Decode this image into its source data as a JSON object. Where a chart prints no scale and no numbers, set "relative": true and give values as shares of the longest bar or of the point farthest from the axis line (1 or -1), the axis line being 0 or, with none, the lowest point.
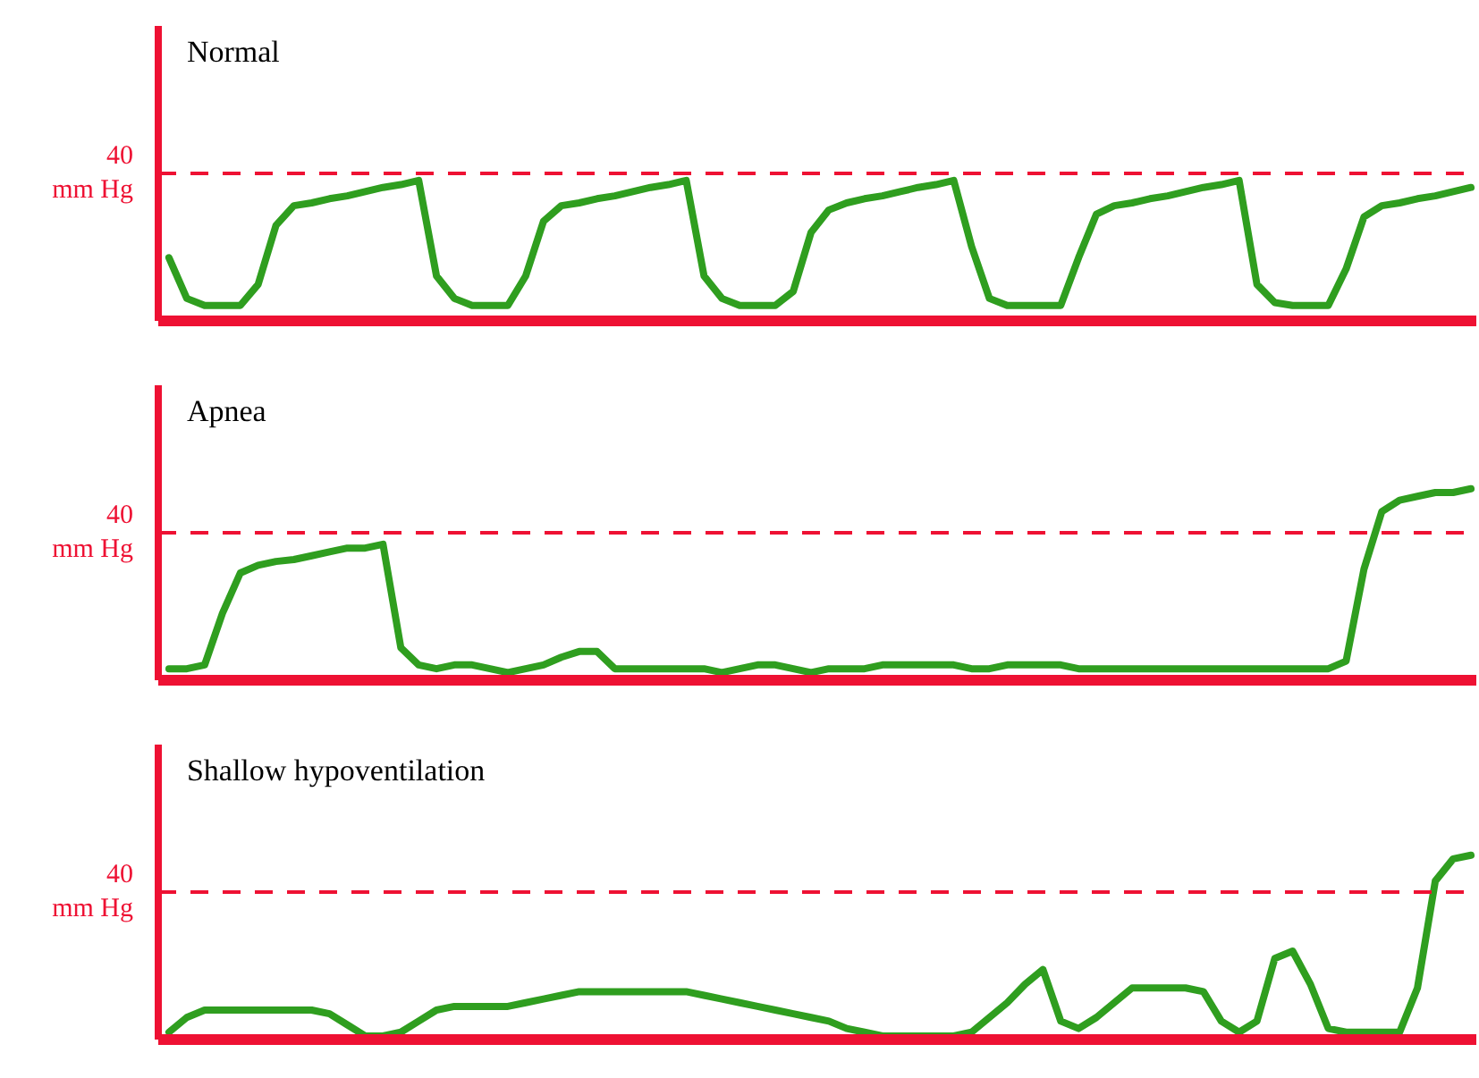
{
  "chart_data": [
    {
      "type": "line",
      "title": "Normal",
      "relative": true,
      "categories": [
        null,
        null,
        null,
        null,
        null,
        null,
        null,
        null,
        null,
        null,
        null,
        null,
        null,
        null,
        null,
        null,
        null,
        null,
        null,
        null,
        null,
        null,
        null,
        null,
        null,
        null,
        null,
        null,
        null,
        null,
        null,
        null,
        null,
        null,
        null,
        null,
        null,
        null,
        null,
        null,
        null,
        null,
        null,
        null,
        null,
        null,
        null,
        null,
        null,
        null,
        null,
        null,
        null,
        null,
        null,
        null,
        null,
        null,
        null,
        null,
        null,
        null,
        null,
        null,
        null,
        null,
        null,
        null,
        null,
        null,
        null,
        null,
        null,
        null
      ],
      "series": [
        {
          "color": "#2f9e1f",
          "values": [
            0.45,
            0.16,
            0.11,
            0.11,
            0.11,
            0.26,
            0.68,
            0.82,
            0.84,
            0.87,
            0.89,
            0.92,
            0.95,
            0.97,
            1,
            0.32,
            0.16,
            0.11,
            0.11,
            0.11,
            0.32,
            0.71,
            0.82,
            0.84,
            0.87,
            0.89,
            0.92,
            0.95,
            0.97,
            1,
            0.32,
            0.16,
            0.11,
            0.11,
            0.11,
            0.21,
            0.63,
            0.79,
            0.84,
            0.87,
            0.89,
            0.92,
            0.95,
            0.97,
            1,
            0.53,
            0.16,
            0.11,
            0.11,
            0.11,
            0.11,
            0.45,
            0.76,
            0.82,
            0.84,
            0.87,
            0.89,
            0.92,
            0.95,
            0.97,
            1,
            0.26,
            0.13,
            0.11,
            0.11,
            0.11,
            0.37,
            0.74,
            0.82,
            0.84,
            0.87,
            0.89,
            0.92,
            0.95
          ]
        }
      ],
      "ref_lines": [
        {
          "axis": "y",
          "value": 1.05,
          "label": "40\nmm Hg",
          "color": "#ee1133",
          "line_style": "dashed"
        }
      ]
    },
    {
      "type": "line",
      "title": "Apnea",
      "relative": true,
      "categories": [
        null,
        null,
        null,
        null,
        null,
        null,
        null,
        null,
        null,
        null,
        null,
        null,
        null,
        null,
        null,
        null,
        null,
        null,
        null,
        null,
        null,
        null,
        null,
        null,
        null,
        null,
        null,
        null,
        null,
        null,
        null,
        null,
        null,
        null,
        null,
        null,
        null,
        null,
        null,
        null,
        null,
        null,
        null,
        null,
        null,
        null,
        null,
        null,
        null,
        null,
        null,
        null,
        null,
        null,
        null,
        null,
        null,
        null,
        null,
        null,
        null,
        null,
        null,
        null,
        null,
        null,
        null,
        null,
        null,
        null,
        null,
        null,
        null,
        null
      ],
      "series": [
        {
          "color": "#2f9e1f",
          "values": [
            0.06,
            0.06,
            0.08,
            0.35,
            0.56,
            0.6,
            0.62,
            0.63,
            0.65,
            0.67,
            0.69,
            0.69,
            0.71,
            0.17,
            0.08,
            0.06,
            0.08,
            0.08,
            0.06,
            0.04,
            0.06,
            0.08,
            0.12,
            0.15,
            0.15,
            0.06,
            0.06,
            0.06,
            0.06,
            0.06,
            0.06,
            0.04,
            0.06,
            0.08,
            0.08,
            0.06,
            0.04,
            0.06,
            0.06,
            0.06,
            0.08,
            0.08,
            0.08,
            0.08,
            0.08,
            0.06,
            0.06,
            0.08,
            0.08,
            0.08,
            0.08,
            0.06,
            0.06,
            0.06,
            0.06,
            0.06,
            0.06,
            0.06,
            0.06,
            0.06,
            0.06,
            0.06,
            0.06,
            0.06,
            0.06,
            0.06,
            0.1,
            0.58,
            0.88,
            0.94,
            0.96,
            0.98,
            0.98,
            1
          ]
        }
      ],
      "ref_lines": [
        {
          "axis": "y",
          "value": 0.77,
          "label": "40\nmm Hg",
          "color": "#ee1133",
          "line_style": "dashed"
        }
      ]
    },
    {
      "type": "line",
      "title": "Shallow hypoventilation",
      "relative": true,
      "categories": [
        null,
        null,
        null,
        null,
        null,
        null,
        null,
        null,
        null,
        null,
        null,
        null,
        null,
        null,
        null,
        null,
        null,
        null,
        null,
        null,
        null,
        null,
        null,
        null,
        null,
        null,
        null,
        null,
        null,
        null,
        null,
        null,
        null,
        null,
        null,
        null,
        null,
        null,
        null,
        null,
        null,
        null,
        null,
        null,
        null,
        null,
        null,
        null,
        null,
        null,
        null,
        null,
        null,
        null,
        null,
        null,
        null,
        null,
        null,
        null,
        null,
        null,
        null,
        null,
        null,
        null,
        null,
        null,
        null,
        null,
        null,
        null,
        null,
        null
      ],
      "series": [
        {
          "color": "#2f9e1f",
          "values": [
            0.04,
            0.12,
            0.16,
            0.16,
            0.16,
            0.16,
            0.16,
            0.16,
            0.16,
            0.14,
            0.08,
            0.02,
            0.02,
            0.04,
            0.1,
            0.16,
            0.18,
            0.18,
            0.18,
            0.18,
            0.2,
            0.22,
            0.24,
            0.26,
            0.26,
            0.26,
            0.26,
            0.26,
            0.26,
            0.26,
            0.24,
            0.22,
            0.2,
            0.18,
            0.16,
            0.14,
            0.12,
            0.1,
            0.06,
            0.04,
            0.02,
            0.02,
            0.02,
            0.02,
            0.02,
            0.04,
            0.12,
            0.2,
            0.3,
            0.38,
            0.1,
            0.06,
            0.12,
            0.2,
            0.28,
            0.28,
            0.28,
            0.28,
            0.26,
            0.1,
            0.04,
            0.1,
            0.44,
            0.48,
            0.3,
            0.06,
            0.04,
            0.04,
            0.04,
            0.04,
            0.28,
            0.86,
            0.98,
            1
          ]
        }
      ],
      "ref_lines": [
        {
          "axis": "y",
          "value": 0.8,
          "label": "40\nmm Hg",
          "color": "#ee1133",
          "line_style": "dashed"
        }
      ]
    }
  ]
}
